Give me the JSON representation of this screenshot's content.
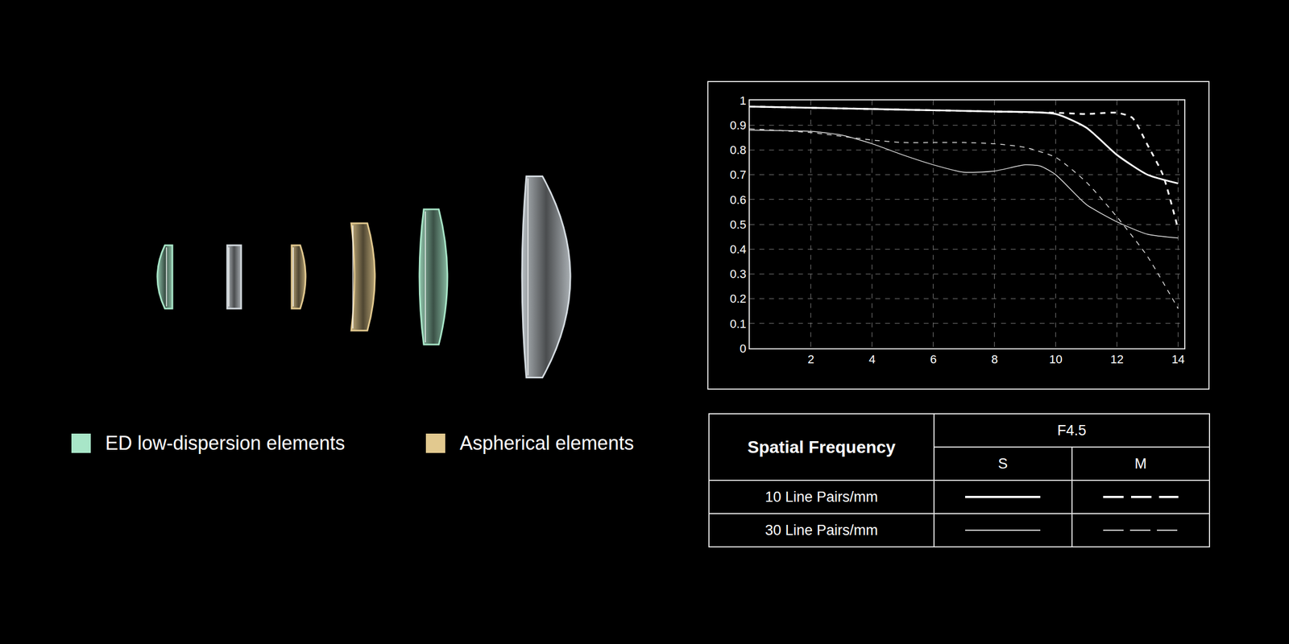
{
  "chart_data": {
    "type": "line",
    "xlim": [
      0,
      14.2
    ],
    "xticks": [
      2,
      4,
      6,
      8,
      10,
      12,
      14
    ],
    "ylim": [
      0,
      1
    ],
    "yticks": [
      0,
      0.1,
      0.2,
      0.3,
      0.4,
      0.5,
      0.6,
      0.7,
      0.8,
      0.9,
      1
    ],
    "grid": true,
    "series": [
      {
        "frequency": "10 Line Pairs/mm",
        "direction": "S",
        "line_style": "solid",
        "color": "#ffffff",
        "x": [
          0,
          2,
          4,
          6,
          8,
          10,
          11,
          12,
          13,
          14
        ],
        "values": [
          0.975,
          0.97,
          0.965,
          0.96,
          0.955,
          0.945,
          0.89,
          0.78,
          0.7,
          0.665
        ]
      },
      {
        "frequency": "10 Line Pairs/mm",
        "direction": "M",
        "line_style": "dash",
        "color": "#ffffff",
        "x": [
          0,
          2,
          4,
          6,
          8,
          10,
          11,
          12,
          12.5,
          13,
          13.5,
          14
        ],
        "values": [
          0.975,
          0.97,
          0.965,
          0.96,
          0.955,
          0.95,
          0.945,
          0.95,
          0.93,
          0.82,
          0.7,
          0.48
        ]
      },
      {
        "frequency": "30 Line Pairs/mm",
        "direction": "S",
        "line_style": "solid",
        "color": "#e6e6e6",
        "x": [
          0,
          2,
          3,
          4,
          5,
          6,
          7,
          8,
          9,
          9.5,
          10,
          11,
          12,
          13,
          14
        ],
        "values": [
          0.88,
          0.875,
          0.86,
          0.825,
          0.78,
          0.74,
          0.71,
          0.715,
          0.74,
          0.735,
          0.7,
          0.58,
          0.51,
          0.46,
          0.445
        ]
      },
      {
        "frequency": "30 Line Pairs/mm",
        "direction": "M",
        "line_style": "dash",
        "color": "#e6e6e6",
        "x": [
          0,
          2,
          4,
          5,
          6,
          7,
          8,
          9,
          10,
          11,
          12,
          13,
          14
        ],
        "values": [
          0.885,
          0.87,
          0.84,
          0.83,
          0.83,
          0.83,
          0.825,
          0.81,
          0.77,
          0.67,
          0.53,
          0.37,
          0.16
        ]
      }
    ]
  },
  "table": {
    "header": "Spatial Frequency",
    "aperture": "F4.5",
    "columns": [
      "S",
      "M"
    ],
    "rows": [
      "10 Line Pairs/mm",
      "30 Line Pairs/mm"
    ]
  },
  "element_legend": [
    {
      "label": "ED low-dispersion elements",
      "color": "#a8e6c8"
    },
    {
      "label": "Aspherical elements",
      "color": "#e2c98f"
    }
  ]
}
